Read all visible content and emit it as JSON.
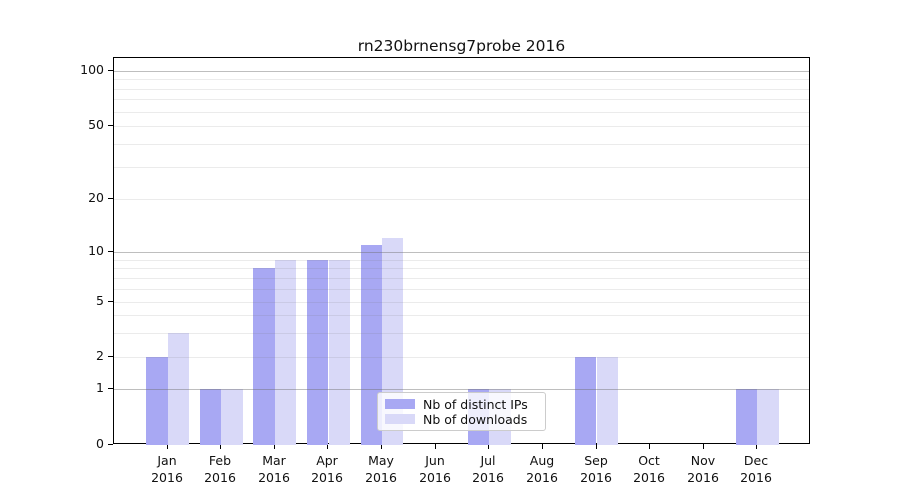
{
  "chart_data": {
    "type": "bar",
    "title": "rn230brnensg7probe 2016",
    "categories": [
      "Jan",
      "Feb",
      "Mar",
      "Apr",
      "May",
      "Jun",
      "Jul",
      "Aug",
      "Sep",
      "Oct",
      "Nov",
      "Dec"
    ],
    "category_year": "2016",
    "series": [
      {
        "name": "Nb of distinct IPs",
        "color": "#a8a8f3",
        "values": [
          2,
          1,
          8,
          9,
          11,
          0,
          1,
          0,
          2,
          0,
          0,
          1
        ]
      },
      {
        "name": "Nb of downloads",
        "color": "#d9d9f8",
        "values": [
          3,
          1,
          9,
          9,
          12,
          0,
          1,
          0,
          2,
          0,
          0,
          1
        ]
      }
    ],
    "xlabel": "",
    "ylabel": "",
    "yticks": [
      0,
      1,
      2,
      5,
      10,
      20,
      50,
      100
    ],
    "ytick_labels": [
      "0",
      "1",
      "2",
      "5",
      "10",
      "20",
      "50",
      "100"
    ],
    "ylim": [
      0,
      118
    ],
    "yscale": "symlog",
    "grid": "horizontal, major (decades) dark + minor (mantissas) faint, drawn above bars",
    "legend_position": "inside axes, lower middle"
  }
}
